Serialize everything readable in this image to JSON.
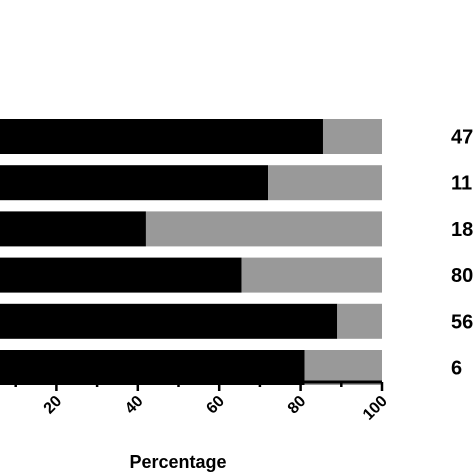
{
  "chart_data": {
    "type": "bar",
    "orientation": "horizontal",
    "stacked": true,
    "xlabel": "Percentage",
    "xlim": [
      0,
      100
    ],
    "xticks": [
      "20",
      "40",
      "60",
      "80",
      "100"
    ],
    "row_labels": [
      "47",
      "11",
      "18",
      "80",
      "56",
      "6"
    ],
    "series": [
      {
        "color": "#000000",
        "values": [
          85.5,
          72,
          42,
          65.5,
          89,
          81
        ]
      },
      {
        "color": "#999999",
        "values": [
          14.5,
          28,
          58,
          34.5,
          11,
          19
        ]
      }
    ],
    "grid": false,
    "legend": "none"
  }
}
